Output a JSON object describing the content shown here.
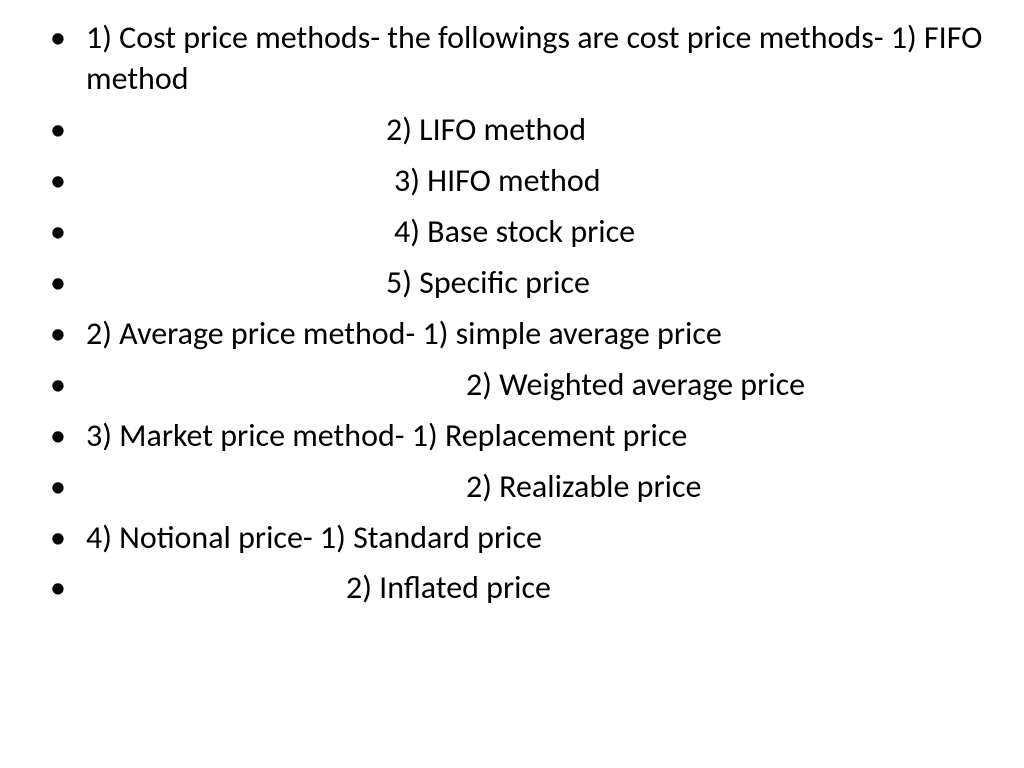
{
  "slide": {
    "lines": [
      {
        "text": "1) Cost price methods- the followings are cost price methods- 1) FIFO method",
        "indentClass": ""
      },
      {
        "text": "2) LIFO method",
        "indentClass": "indent-a"
      },
      {
        "text": "3) HIFO method",
        "indentClass": "indent-b"
      },
      {
        "text": "4) Base stock price",
        "indentClass": "indent-b"
      },
      {
        "text": "5) Specific price",
        "indentClass": "indent-a"
      },
      {
        "text": "2) Average price method-  1) simple average price",
        "indentClass": ""
      },
      {
        "text": "2) Weighted average price",
        "indentClass": "indent-c"
      },
      {
        "text": "3) Market price method- 1) Replacement price",
        "indentClass": ""
      },
      {
        "text": "2) Realizable price",
        "indentClass": "indent-d"
      },
      {
        "text": "4) Notional price-       1) Standard price",
        "indentClass": ""
      },
      {
        "text": "2) Inflated price",
        "indentClass": "indent-e"
      }
    ],
    "style": {
      "background": "#ffffff",
      "textColor": "#000000",
      "fontSize": 32,
      "fontFamily": "Calibri"
    }
  }
}
